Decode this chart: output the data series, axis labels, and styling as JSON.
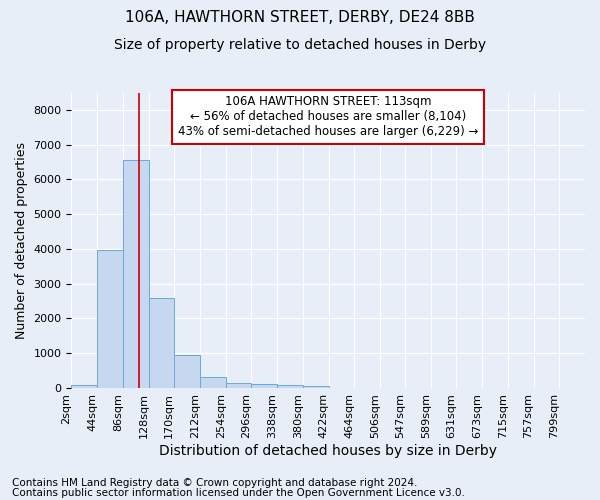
{
  "title1": "106A, HAWTHORN STREET, DERBY, DE24 8BB",
  "title2": "Size of property relative to detached houses in Derby",
  "xlabel": "Distribution of detached houses by size in Derby",
  "ylabel": "Number of detached properties",
  "footer1": "Contains HM Land Registry data © Crown copyright and database right 2024.",
  "footer2": "Contains public sector information licensed under the Open Government Licence v3.0.",
  "annotation_line1": "106A HAWTHORN STREET: 113sqm",
  "annotation_line2": "← 56% of detached houses are smaller (8,104)",
  "annotation_line3": "43% of semi-detached houses are larger (6,229) →",
  "property_size_sqm": 113,
  "bar_edges": [
    2,
    44,
    86,
    128,
    170,
    212,
    254,
    296,
    338,
    380,
    422,
    464,
    506,
    547,
    589,
    631,
    673,
    715,
    757,
    799,
    841
  ],
  "bar_heights": [
    75,
    3980,
    6550,
    2600,
    960,
    310,
    130,
    115,
    90,
    50,
    0,
    0,
    0,
    0,
    0,
    0,
    0,
    0,
    0,
    0
  ],
  "bar_color": "#c5d8ef",
  "bar_edge_color": "#6aaad4",
  "vline_color": "#cc0000",
  "vline_x": 113,
  "ylim_max": 8500,
  "yticks": [
    0,
    1000,
    2000,
    3000,
    4000,
    5000,
    6000,
    7000,
    8000
  ],
  "annotation_box_color": "#cc0000",
  "bg_color": "#e8eef8",
  "grid_color": "#ffffff",
  "title1_fontsize": 11,
  "title2_fontsize": 10,
  "xlabel_fontsize": 10,
  "ylabel_fontsize": 9,
  "tick_fontsize": 8,
  "annotation_fontsize": 8.5,
  "footer_fontsize": 7.5
}
